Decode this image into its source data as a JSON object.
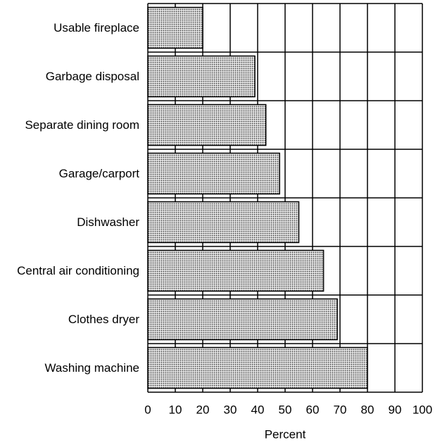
{
  "chart_data": {
    "type": "barh",
    "categories": [
      "Usable fireplace",
      "Garbage disposal",
      "Separate dining room",
      "Garage/carport",
      "Dishwasher",
      "Central air conditioning",
      "Clothes dryer",
      "Washing machine"
    ],
    "values": [
      20,
      39,
      43,
      48,
      55,
      64,
      69,
      80
    ],
    "color": "#a8a8a8",
    "xlabel": "Percent",
    "xlim": [
      0,
      100
    ],
    "xticks": [
      0,
      10,
      20,
      30,
      40,
      50,
      60,
      70,
      80,
      90,
      100
    ],
    "grid": true
  }
}
